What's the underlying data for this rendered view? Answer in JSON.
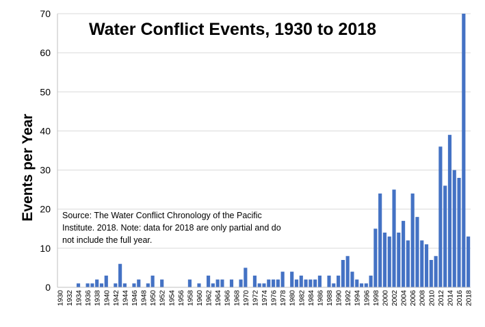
{
  "chart_data": {
    "type": "bar",
    "title": "Water Conflict Events, 1930 to 2018",
    "xlabel": "",
    "ylabel": "Events per Year",
    "ylim": [
      0,
      70
    ],
    "yticks": [
      0,
      10,
      20,
      30,
      40,
      50,
      60,
      70
    ],
    "bar_color": "#4472C4",
    "grid": "horizontal",
    "categories": [
      1930,
      1931,
      1932,
      1933,
      1934,
      1935,
      1936,
      1937,
      1938,
      1939,
      1940,
      1941,
      1942,
      1943,
      1944,
      1945,
      1946,
      1947,
      1948,
      1949,
      1950,
      1951,
      1952,
      1953,
      1954,
      1955,
      1956,
      1957,
      1958,
      1959,
      1960,
      1961,
      1962,
      1963,
      1964,
      1965,
      1966,
      1967,
      1968,
      1969,
      1970,
      1971,
      1972,
      1973,
      1974,
      1975,
      1976,
      1977,
      1978,
      1979,
      1980,
      1981,
      1982,
      1983,
      1984,
      1985,
      1986,
      1987,
      1988,
      1989,
      1990,
      1991,
      1992,
      1993,
      1994,
      1995,
      1996,
      1997,
      1998,
      1999,
      2000,
      2001,
      2002,
      2003,
      2004,
      2005,
      2006,
      2007,
      2008,
      2009,
      2010,
      2011,
      2012,
      2013,
      2014,
      2015,
      2016,
      2017,
      2018
    ],
    "tick_labels": [
      "1930",
      "1932",
      "1934",
      "1936",
      "1938",
      "1940",
      "1942",
      "1944",
      "1946",
      "1948",
      "1950",
      "1952",
      "1954",
      "1956",
      "1958",
      "1960",
      "1962",
      "1964",
      "1966",
      "1968",
      "1970",
      "1972",
      "1974",
      "1976",
      "1978",
      "1980",
      "1982",
      "1984",
      "1986",
      "1988",
      "1990",
      "1992",
      "1994",
      "1996",
      "1998",
      "2000",
      "2002",
      "2004",
      "2006",
      "2008",
      "2010",
      "2012",
      "2014",
      "2016",
      "2018"
    ],
    "values": [
      0,
      0,
      0,
      0,
      1,
      0,
      1,
      1,
      2,
      1,
      3,
      0,
      1,
      6,
      1,
      0,
      1,
      2,
      0,
      1,
      3,
      0,
      2,
      0,
      0,
      0,
      0,
      0,
      2,
      0,
      1,
      0,
      3,
      1,
      2,
      2,
      0,
      2,
      0,
      2,
      5,
      0,
      3,
      1,
      1,
      2,
      2,
      2,
      4,
      0,
      4,
      2,
      3,
      2,
      2,
      2,
      3,
      0,
      3,
      1,
      3,
      7,
      8,
      4,
      2,
      1,
      1,
      3,
      15,
      24,
      14,
      13,
      25,
      14,
      17,
      12,
      24,
      18,
      12,
      11,
      7,
      8,
      36,
      26,
      39,
      30,
      28,
      70,
      13
    ],
    "annotation": [
      "Source: The Water Conflict Chronology of the Pacific",
      "Institute. 2018. Note: data for 2018 are only partial and do",
      "not include the full year."
    ]
  }
}
